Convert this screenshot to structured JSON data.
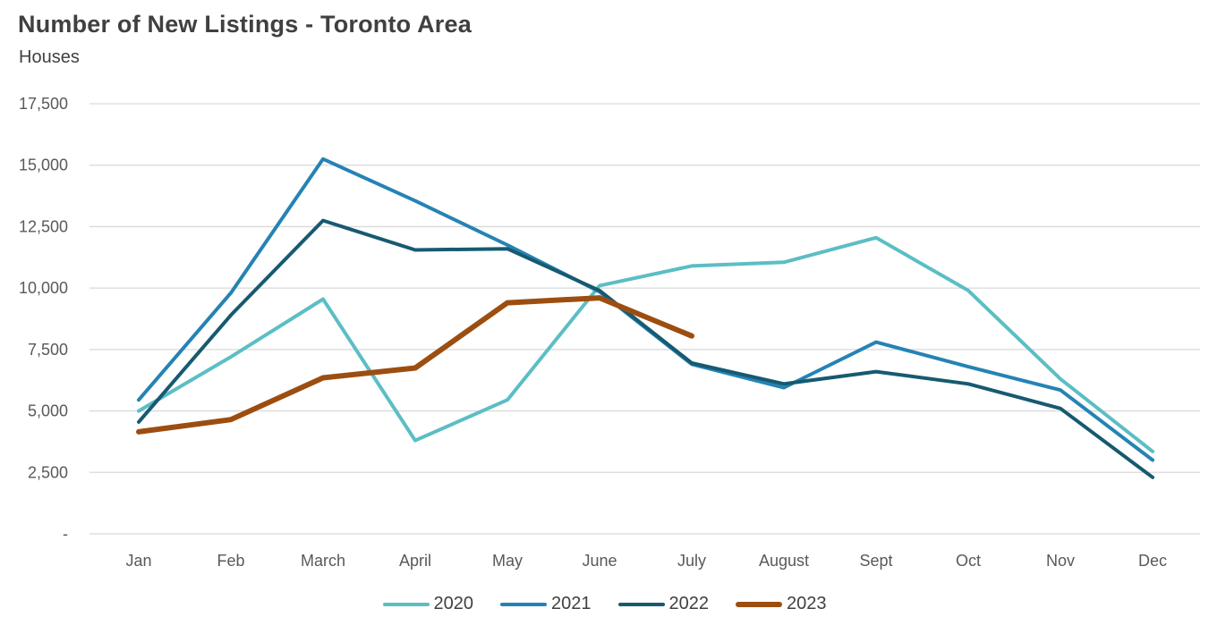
{
  "header": {
    "title": "Number of New Listings - Toronto Area",
    "subtitle": "Houses"
  },
  "colors": {
    "background": "#FFFFFF",
    "grid": "#D9D9D9",
    "title_text": "#404040",
    "axis_text": "#595959",
    "series_2020": "#5BBEC4",
    "series_2021": "#2583B4",
    "series_2022": "#175A70",
    "series_2023": "#9C4E10"
  },
  "chart_data": {
    "type": "line",
    "title": "Number of New Listings - Toronto Area",
    "subtitle": "Houses",
    "categories": [
      "Jan",
      "Feb",
      "March",
      "April",
      "May",
      "June",
      "July",
      "August",
      "Sept",
      "Oct",
      "Nov",
      "Dec"
    ],
    "y_ticks": [
      {
        "label": "17,500",
        "value": 17500
      },
      {
        "label": "15,000",
        "value": 15000
      },
      {
        "label": "12,500",
        "value": 12500
      },
      {
        "label": "10,000",
        "value": 10000
      },
      {
        "label": "7,500",
        "value": 7500
      },
      {
        "label": "5,000",
        "value": 5000
      },
      {
        "label": "2,500",
        "value": 2500
      },
      {
        "label": "-",
        "value": 0
      }
    ],
    "ylim": [
      0,
      17500
    ],
    "grid": "horizontal",
    "legend_position": "bottom",
    "series": [
      {
        "name": "2020",
        "color": "#5BBEC4",
        "stroke_width": 4,
        "values": [
          5000,
          7200,
          9550,
          3800,
          5450,
          10100,
          10900,
          11050,
          12050,
          9900,
          6300,
          3350
        ]
      },
      {
        "name": "2021",
        "color": "#2583B4",
        "stroke_width": 4,
        "values": [
          5450,
          9800,
          15250,
          13550,
          11750,
          9850,
          6900,
          5950,
          7800,
          6800,
          5850,
          3000
        ]
      },
      {
        "name": "2022",
        "color": "#175A70",
        "stroke_width": 4,
        "values": [
          4550,
          8900,
          12750,
          11550,
          11600,
          9900,
          6950,
          6100,
          6600,
          6100,
          5100,
          2300
        ]
      },
      {
        "name": "2023",
        "color": "#9C4E10",
        "stroke_width": 6,
        "values": [
          4150,
          4650,
          6350,
          6750,
          9400,
          9600,
          8050
        ]
      }
    ]
  }
}
